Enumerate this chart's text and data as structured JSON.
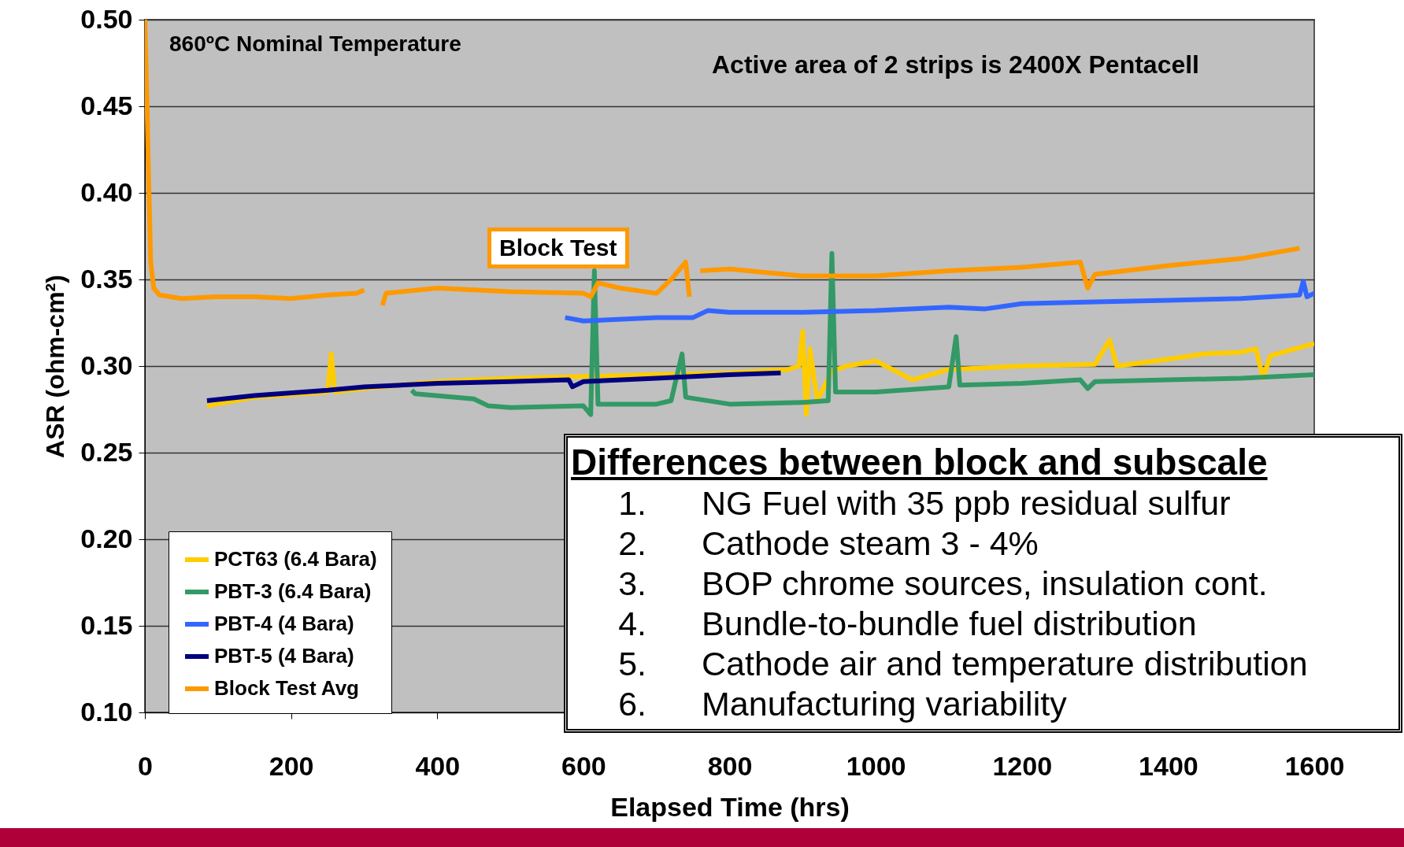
{
  "chart_data": {
    "type": "line",
    "xlabel": "Elapsed Time (hrs)",
    "ylabel": "ASR (ohm-cm²)",
    "xlim": [
      0,
      1600
    ],
    "xticks": [
      0,
      200,
      400,
      600,
      800,
      1000,
      1200,
      1400,
      1600
    ],
    "ylim": [
      0.1,
      0.5
    ],
    "yticks": [
      {
        "value": 0.1,
        "label": "0.10"
      },
      0.15,
      {
        "value": 0.2,
        "label": "0.20"
      },
      0.25,
      {
        "value": 0.3,
        "label": "0.30"
      },
      0.35,
      {
        "value": 0.4,
        "label": "0.40"
      },
      0.45,
      {
        "value": 0.5,
        "label": "0.50"
      }
    ],
    "grid": "y",
    "legend": "bottom left",
    "series": [
      {
        "name": "PCT63 (6.4 Bara)",
        "color": "#ffcc00",
        "x": [
          85,
          150,
          250,
          255,
          260,
          300,
          400,
          500,
          600,
          700,
          800,
          880,
          895,
          900,
          905,
          910,
          920,
          940,
          960,
          1000,
          1050,
          1100,
          1200,
          1300,
          1320,
          1330,
          1400,
          1450,
          1500,
          1520,
          1530,
          1540,
          1600
        ],
        "values": [
          0.277,
          0.282,
          0.285,
          0.307,
          0.285,
          0.287,
          0.291,
          0.293,
          0.294,
          0.295,
          0.296,
          0.298,
          0.3,
          0.32,
          0.272,
          0.31,
          0.28,
          0.297,
          0.3,
          0.303,
          0.292,
          0.298,
          0.3,
          0.301,
          0.315,
          0.3,
          0.304,
          0.307,
          0.308,
          0.31,
          0.293,
          0.306,
          0.313
        ]
      },
      {
        "name": "PBT-3 (6.4 Bara)",
        "color": "#339966",
        "x": [
          365,
          370,
          450,
          470,
          500,
          600,
          610,
          615,
          620,
          700,
          720,
          735,
          740,
          800,
          900,
          935,
          940,
          945,
          1000,
          1100,
          1110,
          1115,
          1200,
          1280,
          1290,
          1300,
          1400,
          1500,
          1600
        ],
        "values": [
          0.286,
          0.284,
          0.281,
          0.277,
          0.276,
          0.277,
          0.272,
          0.355,
          0.278,
          0.278,
          0.28,
          0.307,
          0.282,
          0.278,
          0.279,
          0.28,
          0.365,
          0.285,
          0.285,
          0.288,
          0.317,
          0.289,
          0.29,
          0.292,
          0.287,
          0.291,
          0.292,
          0.293,
          0.295
        ]
      },
      {
        "name": "PBT-4 (4 Bara)",
        "color": "#3366ff",
        "x": [
          575,
          600,
          700,
          750,
          770,
          800,
          900,
          1000,
          1100,
          1150,
          1200,
          1300,
          1400,
          1500,
          1580,
          1585,
          1590,
          1600
        ],
        "values": [
          0.328,
          0.326,
          0.328,
          0.328,
          0.332,
          0.331,
          0.331,
          0.332,
          0.334,
          0.333,
          0.336,
          0.337,
          0.338,
          0.339,
          0.341,
          0.349,
          0.34,
          0.342
        ]
      },
      {
        "name": "PBT-5 (4 Bara)",
        "color": "#000080",
        "x": [
          85,
          150,
          250,
          300,
          400,
          500,
          580,
          585,
          600,
          700,
          800,
          870
        ],
        "values": [
          0.28,
          0.283,
          0.286,
          0.288,
          0.29,
          0.291,
          0.292,
          0.288,
          0.291,
          0.293,
          0.295,
          0.296
        ]
      },
      {
        "name": "Block Test Avg",
        "color": "#ff9900",
        "x": [
          0,
          3,
          5,
          8,
          12,
          20,
          50,
          100,
          150,
          200,
          250,
          290,
          300,
          310,
          325,
          330,
          400,
          500,
          600,
          610,
          620,
          650,
          700,
          720,
          740,
          745,
          752,
          760,
          800,
          900,
          1000,
          1100,
          1200,
          1280,
          1290,
          1300,
          1400,
          1500,
          1580
        ],
        "values": [
          0.5,
          0.45,
          0.41,
          0.36,
          0.345,
          0.341,
          0.339,
          0.34,
          0.34,
          0.339,
          0.341,
          0.342,
          0.344,
          null,
          0.335,
          0.342,
          0.345,
          0.343,
          0.342,
          0.34,
          0.348,
          0.345,
          0.342,
          0.35,
          0.36,
          0.34,
          null,
          0.355,
          0.356,
          0.352,
          0.352,
          0.355,
          0.357,
          0.36,
          0.345,
          0.353,
          0.358,
          0.362,
          0.368
        ]
      }
    ],
    "annotations": [
      "860ºC Nominal Temperature",
      "Active area of 2 strips is 2400X Pentacell",
      "Block Test",
      "Differences between block and subscale",
      "1.\tNG Fuel with 35 ppb residual sulfur",
      "2.\tCathode steam 3 - 4%",
      "3.\tBOP chrome sources, insulation cont.",
      "4.\tBundle-to-bundle fuel distribution",
      "5.\tCathode air and temperature distribution",
      "6.\tManufacturing variability"
    ]
  }
}
